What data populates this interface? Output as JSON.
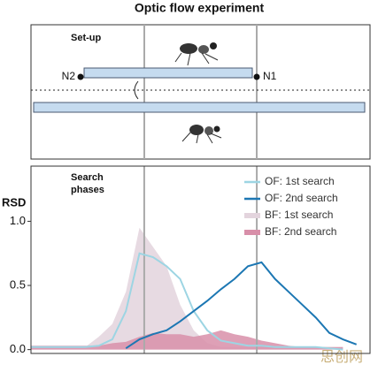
{
  "diagram": {
    "title": "Optic flow experiment",
    "panel_label": "Set-up",
    "left_node": "N2",
    "right_node": "N1"
  },
  "watermark": "思创网",
  "chart_data": {
    "type": "line",
    "annotations": [
      "Search",
      "phases"
    ],
    "y_label": "RSD",
    "x": [
      0,
      4,
      8,
      12,
      16,
      20,
      24,
      28,
      32,
      36,
      40,
      44,
      48,
      52,
      56,
      60,
      64,
      68,
      72,
      76,
      80,
      84,
      88,
      92,
      96
    ],
    "xlim": [
      0,
      100
    ],
    "vlines": [
      33.4,
      66.6
    ],
    "ylim": [
      -0.03,
      1.43
    ],
    "yticks": [
      {
        "value": 0,
        "label": "0.0"
      },
      0.5,
      {
        "value": 1,
        "label": "1.0"
      }
    ],
    "series": [
      {
        "name": "OF: 1st search",
        "color": "#9dd5e3",
        "style": "line",
        "values": [
          0.02,
          0.02,
          0.02,
          0.02,
          0.02,
          0.03,
          0.08,
          0.3,
          0.75,
          0.72,
          0.65,
          0.55,
          0.3,
          0.15,
          0.07,
          0.05,
          0.03,
          0.03,
          0.02,
          0.02,
          0.02,
          0.02,
          0.01,
          0.0,
          null
        ]
      },
      {
        "name": "OF: 2nd search",
        "color": "#1c77b3",
        "style": "line",
        "values": [
          null,
          null,
          null,
          null,
          null,
          null,
          null,
          0.01,
          0.08,
          0.12,
          0.15,
          0.22,
          0.3,
          0.38,
          0.47,
          0.55,
          0.65,
          0.68,
          0.55,
          0.45,
          0.35,
          0.25,
          0.13,
          0.08,
          0.04
        ]
      },
      {
        "name": "BF: 1st search",
        "color": "#e3d4dd",
        "style": "area",
        "values": [
          0.02,
          0.02,
          0.02,
          0.02,
          0.02,
          0.1,
          0.2,
          0.45,
          0.95,
          0.8,
          0.65,
          0.35,
          0.15,
          0.05,
          0.02,
          0.02,
          0.02,
          0.02,
          0.02,
          0.02,
          0.02,
          0.02,
          0.02,
          0.02,
          null
        ]
      },
      {
        "name": "BF: 2nd search",
        "color": "#d88fa9",
        "style": "area",
        "values": [
          0.03,
          0.03,
          0.03,
          0.03,
          0.03,
          0.03,
          0.05,
          0.06,
          0.1,
          0.13,
          0.12,
          0.12,
          0.1,
          0.12,
          0.15,
          0.12,
          0.1,
          0.07,
          0.05,
          0.03,
          0.02,
          0.02,
          0.02,
          0.02,
          null
        ]
      }
    ]
  }
}
